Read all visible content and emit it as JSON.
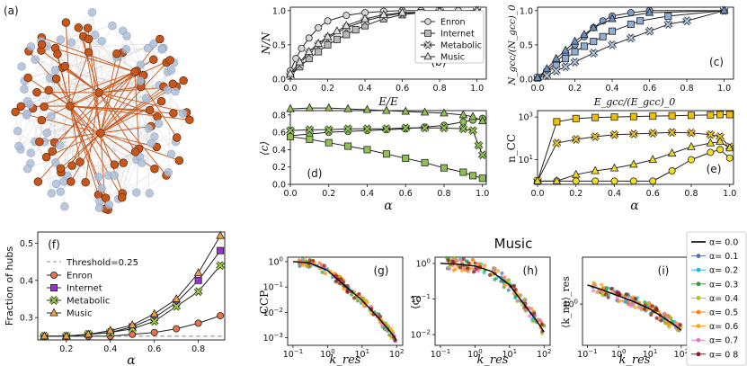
{
  "figure": {
    "music_title": "Music",
    "series_names": [
      "Enron",
      "Internet",
      "Metabolic",
      "Music"
    ],
    "series_colors": {
      "Enron": "#f0e020",
      "Internet": "#e8b000",
      "Metabolic": "#8dc63f",
      "Music": "#e8a030"
    },
    "network_colors": {
      "hub": "#c8561a",
      "node": "#aebfd8",
      "edge": "#bbbbbb",
      "hub_edge": "#c8561a"
    }
  },
  "chart_data": [
    {
      "panel": "(a)",
      "type": "network",
      "label": "(a)"
    },
    {
      "panel": "(b)",
      "type": "line",
      "label": "(b)",
      "xlabel": "E/E_0",
      "ylabel": "N/N_0",
      "xlim": [
        0,
        1.05
      ],
      "ylim": [
        0,
        1.05
      ],
      "xticks": [
        "0.0",
        "0.2",
        "0.4",
        "0.6",
        "0.8",
        "1.0"
      ],
      "yticks": [
        "0.0",
        "0.5",
        "1.0"
      ],
      "legend": "bottom-right",
      "series": [
        {
          "name": "Enron",
          "marker": "circle",
          "x": [
            0.0,
            0.03,
            0.06,
            0.1,
            0.15,
            0.2,
            0.3,
            0.4,
            0.5,
            0.6,
            0.7,
            0.8,
            0.9,
            1.0
          ],
          "y": [
            0.12,
            0.3,
            0.45,
            0.6,
            0.75,
            0.85,
            0.93,
            0.97,
            0.99,
            1.0,
            1.0,
            1.0,
            1.0,
            1.0
          ]
        },
        {
          "name": "Internet",
          "marker": "square",
          "x": [
            0.0,
            0.05,
            0.1,
            0.15,
            0.2,
            0.25,
            0.3,
            0.35,
            0.4,
            0.5,
            0.6,
            0.7,
            0.8,
            1.0
          ],
          "y": [
            0.05,
            0.18,
            0.3,
            0.4,
            0.5,
            0.58,
            0.65,
            0.72,
            0.78,
            0.88,
            0.94,
            0.97,
            0.99,
            1.0
          ]
        },
        {
          "name": "Metabolic",
          "marker": "x",
          "x": [
            0.0,
            0.05,
            0.1,
            0.15,
            0.2,
            0.3,
            0.4,
            0.5,
            0.6,
            0.8,
            1.0
          ],
          "y": [
            0.05,
            0.22,
            0.38,
            0.5,
            0.6,
            0.75,
            0.85,
            0.92,
            0.96,
            0.99,
            1.0
          ]
        },
        {
          "name": "Music",
          "marker": "triangle",
          "x": [
            0.0,
            0.05,
            0.1,
            0.15,
            0.2,
            0.25,
            0.3,
            0.4,
            0.5,
            0.6,
            0.8,
            1.0
          ],
          "y": [
            0.08,
            0.25,
            0.4,
            0.52,
            0.62,
            0.7,
            0.78,
            0.88,
            0.94,
            0.97,
            0.99,
            1.0
          ]
        }
      ]
    },
    {
      "panel": "(c)",
      "type": "line",
      "label": "(c)",
      "xlabel": "E_gcc/(E_gcc)_0",
      "ylabel": "N_gcc/(N_gcc)_0",
      "xlim": [
        0,
        1.05
      ],
      "ylim": [
        0,
        1.05
      ],
      "xticks": [
        "0.0",
        "0.2",
        "0.4",
        "0.6",
        "0.8",
        "1.0"
      ],
      "yticks": [
        "0.0",
        "0.5",
        "1.0"
      ],
      "series": [
        {
          "name": "Enron",
          "marker": "circle",
          "x": [
            0.0,
            0.05,
            0.1,
            0.15,
            0.2,
            0.25,
            0.3,
            0.35,
            0.4,
            0.5,
            0.6,
            1.0
          ],
          "y": [
            0.02,
            0.12,
            0.25,
            0.38,
            0.5,
            0.62,
            0.75,
            0.85,
            0.92,
            0.97,
            1.0,
            1.0
          ]
        },
        {
          "name": "Internet",
          "marker": "square",
          "x": [
            0.0,
            0.05,
            0.1,
            0.15,
            0.2,
            0.25,
            0.3,
            0.35,
            0.4,
            0.5,
            0.55,
            0.7,
            1.0
          ],
          "y": [
            0.02,
            0.1,
            0.2,
            0.3,
            0.4,
            0.48,
            0.55,
            0.62,
            0.7,
            0.8,
            0.85,
            0.92,
            1.0
          ]
        },
        {
          "name": "Metabolic",
          "marker": "x",
          "x": [
            0.0,
            0.05,
            0.1,
            0.15,
            0.2,
            0.3,
            0.4,
            0.5,
            0.6,
            0.7,
            0.8,
            1.0
          ],
          "y": [
            0.02,
            0.05,
            0.12,
            0.18,
            0.25,
            0.38,
            0.5,
            0.6,
            0.7,
            0.8,
            0.85,
            1.0
          ]
        },
        {
          "name": "Music",
          "marker": "triangle",
          "x": [
            0.0,
            0.05,
            0.1,
            0.15,
            0.2,
            0.25,
            0.3,
            0.4,
            0.6,
            1.0
          ],
          "y": [
            0.02,
            0.15,
            0.3,
            0.42,
            0.55,
            0.65,
            0.75,
            0.88,
            0.97,
            1.0
          ]
        }
      ]
    },
    {
      "panel": "(d)",
      "type": "line",
      "label": "(d)",
      "xlabel": "α",
      "ylabel": "⟨c⟩",
      "xlim": [
        0,
        1.02
      ],
      "ylim": [
        0,
        0.85
      ],
      "xticks": [
        "0.0",
        "0.2",
        "0.4",
        "0.6",
        "0.8",
        "1.0"
      ],
      "yticks": [
        "0.0",
        "0.2",
        "0.4",
        "0.6",
        "0.8"
      ],
      "series": [
        {
          "name": "Enron",
          "marker": "circle",
          "x": [
            0.0,
            0.1,
            0.2,
            0.3,
            0.4,
            0.5,
            0.6,
            0.7,
            0.8,
            0.9,
            0.95,
            1.0
          ],
          "y": [
            0.56,
            0.58,
            0.6,
            0.61,
            0.62,
            0.63,
            0.64,
            0.66,
            0.68,
            0.72,
            0.74,
            0.76
          ]
        },
        {
          "name": "Internet",
          "marker": "square",
          "x": [
            0.0,
            0.1,
            0.2,
            0.3,
            0.4,
            0.5,
            0.6,
            0.7,
            0.8,
            0.9,
            0.95,
            1.0
          ],
          "y": [
            0.55,
            0.52,
            0.48,
            0.44,
            0.4,
            0.35,
            0.3,
            0.25,
            0.19,
            0.14,
            0.1,
            0.07
          ]
        },
        {
          "name": "Metabolic",
          "marker": "x",
          "x": [
            0.0,
            0.1,
            0.2,
            0.3,
            0.4,
            0.5,
            0.6,
            0.7,
            0.8,
            0.9,
            0.95,
            0.98,
            1.0
          ],
          "y": [
            0.62,
            0.63,
            0.63,
            0.64,
            0.64,
            0.64,
            0.65,
            0.65,
            0.65,
            0.64,
            0.62,
            0.45,
            0.34
          ]
        },
        {
          "name": "Music",
          "marker": "triangle",
          "x": [
            0.0,
            0.1,
            0.2,
            0.3,
            0.4,
            0.5,
            0.6,
            0.7,
            0.8,
            0.9,
            0.95,
            1.0
          ],
          "y": [
            0.87,
            0.88,
            0.88,
            0.87,
            0.86,
            0.85,
            0.84,
            0.83,
            0.82,
            0.8,
            0.78,
            0.73
          ]
        }
      ]
    },
    {
      "panel": "(e)",
      "type": "line",
      "label": "(e)",
      "xlabel": "α",
      "ylabel": "n_CC",
      "yscale": "log",
      "xlim": [
        0,
        1.02
      ],
      "ylim": [
        0.7,
        2000
      ],
      "xticks": [
        "0.0",
        "0.2",
        "0.4",
        "0.6",
        "0.8",
        "1.0"
      ],
      "yticks": [
        "10^1",
        "10^3"
      ],
      "series": [
        {
          "name": "Enron",
          "marker": "circle",
          "x": [
            0.0,
            0.1,
            0.2,
            0.3,
            0.4,
            0.5,
            0.6,
            0.7,
            0.8,
            0.9,
            0.95,
            1.0
          ],
          "y": [
            1,
            1,
            1,
            1,
            1,
            1,
            1,
            3,
            10,
            22,
            30,
            12
          ]
        },
        {
          "name": "Internet",
          "marker": "square",
          "x": [
            0.0,
            0.1,
            0.2,
            0.3,
            0.4,
            0.5,
            0.6,
            0.7,
            0.8,
            0.9,
            0.95,
            1.0
          ],
          "y": [
            1,
            600,
            850,
            950,
            1000,
            1050,
            1100,
            1150,
            1200,
            1250,
            1300,
            1300
          ]
        },
        {
          "name": "Metabolic",
          "marker": "x",
          "x": [
            0.0,
            0.1,
            0.2,
            0.3,
            0.4,
            0.5,
            0.6,
            0.7,
            0.8,
            0.9,
            0.95,
            1.0
          ],
          "y": [
            1,
            60,
            90,
            120,
            150,
            160,
            175,
            190,
            180,
            150,
            120,
            40
          ]
        },
        {
          "name": "Music",
          "marker": "triangle",
          "x": [
            0.0,
            0.1,
            0.2,
            0.3,
            0.4,
            0.5,
            0.6,
            0.7,
            0.8,
            0.9,
            0.95,
            1.0
          ],
          "y": [
            1,
            1,
            2,
            3,
            4,
            6,
            10,
            20,
            40,
            60,
            70,
            35
          ]
        }
      ]
    },
    {
      "panel": "(f)",
      "type": "line",
      "label": "(f)",
      "xlabel": "α",
      "ylabel": "Fraction of hubs",
      "xlim": [
        0.07,
        0.92
      ],
      "ylim": [
        0.24,
        0.53
      ],
      "xticks": [
        "0.2",
        "0.4",
        "0.6",
        "0.8"
      ],
      "yticks": [
        "0.3",
        "0.4",
        "0.5"
      ],
      "threshold": {
        "label": "Threshold=0.25",
        "value": 0.25
      },
      "legend": "top-left",
      "series": [
        {
          "name": "Enron",
          "marker": "circle",
          "color": "#e8734a",
          "x": [
            0.1,
            0.2,
            0.3,
            0.4,
            0.5,
            0.6,
            0.7,
            0.8,
            0.9
          ],
          "y": [
            0.25,
            0.25,
            0.25,
            0.25,
            0.255,
            0.26,
            0.27,
            0.285,
            0.305
          ]
        },
        {
          "name": "Internet",
          "marker": "square",
          "color": "#9932cc",
          "x": [
            0.1,
            0.2,
            0.3,
            0.4,
            0.5,
            0.6,
            0.7,
            0.8,
            0.9
          ],
          "y": [
            0.25,
            0.25,
            0.255,
            0.26,
            0.275,
            0.3,
            0.34,
            0.4,
            0.48
          ]
        },
        {
          "name": "Metabolic",
          "marker": "x",
          "color": "#9acd32",
          "x": [
            0.1,
            0.2,
            0.3,
            0.4,
            0.5,
            0.6,
            0.7,
            0.8,
            0.9
          ],
          "y": [
            0.25,
            0.25,
            0.255,
            0.26,
            0.27,
            0.29,
            0.33,
            0.37,
            0.44
          ]
        },
        {
          "name": "Music",
          "marker": "triangle",
          "color": "#f0a040",
          "x": [
            0.1,
            0.2,
            0.3,
            0.4,
            0.5,
            0.6,
            0.7,
            0.8,
            0.9
          ],
          "y": [
            0.25,
            0.25,
            0.255,
            0.265,
            0.28,
            0.31,
            0.35,
            0.42,
            0.52
          ]
        }
      ]
    },
    {
      "panel": "(g)",
      "type": "scatter",
      "label": "(g)",
      "xlabel": "k_res",
      "ylabel": "CCP",
      "xscale": "log",
      "yscale": "log",
      "xlim": [
        0.07,
        150
      ],
      "ylim": [
        0.0005,
        1.5
      ],
      "xticks": [
        "10^-1",
        "10^0",
        "10^1",
        "10^2"
      ],
      "yticks": [
        "10^-3",
        "10^-2",
        "10^-1",
        "10^0"
      ],
      "trend": {
        "x": [
          0.1,
          0.3,
          1,
          3,
          10,
          30,
          60,
          100
        ],
        "y": [
          1.0,
          0.9,
          0.45,
          0.12,
          0.03,
          0.006,
          0.002,
          0.0008
        ]
      }
    },
    {
      "panel": "(h)",
      "type": "scatter",
      "label": "(h)",
      "xlabel": "k_res",
      "ylabel": "⟨c⟩",
      "xscale": "log",
      "yscale": "log",
      "xlim": [
        0.07,
        150
      ],
      "ylim": [
        0.005,
        1.5
      ],
      "xticks": [
        "10^-1",
        "10^0",
        "10^1",
        "10^2"
      ],
      "yticks": [
        "10^-2",
        "10^-1",
        "10^0"
      ],
      "trend": {
        "x": [
          0.1,
          0.3,
          1,
          3,
          10,
          30,
          60,
          100
        ],
        "y": [
          1.0,
          0.95,
          0.85,
          0.6,
          0.25,
          0.06,
          0.025,
          0.012
        ]
      }
    },
    {
      "panel": "(i)",
      "type": "scatter",
      "label": "(i)",
      "xlabel": "k_res",
      "ylabel": "⟨k_nn⟩_res",
      "xscale": "log",
      "yscale": "log",
      "xlim": [
        0.07,
        150
      ],
      "ylim": [
        0.05,
        30
      ],
      "xticks": [
        "10^-1",
        "10^0",
        "10^1",
        "10^2"
      ],
      "yticks": [
        "10^0"
      ],
      "legend": "right",
      "legend_entries": [
        {
          "label": "α= 0.0",
          "color": "#000000"
        },
        {
          "label": "α= 0.1",
          "color": "#4c72b0"
        },
        {
          "label": "α= 0.2",
          "color": "#17becf"
        },
        {
          "label": "α= 0.3",
          "color": "#2ca02c"
        },
        {
          "label": "α= 0.4",
          "color": "#bcbd22"
        },
        {
          "label": "α= 0.5",
          "color": "#ff7f0e"
        },
        {
          "label": "α= 0.6",
          "color": "#ff9f1a"
        },
        {
          "label": "α= 0.7",
          "color": "#e377c2"
        },
        {
          "label": "α= 0 8",
          "color": "#8b1a1a"
        }
      ],
      "trend": {
        "x": [
          0.1,
          0.3,
          1,
          3,
          10,
          30,
          60,
          100
        ],
        "y": [
          4.0,
          2.8,
          1.8,
          1.2,
          0.7,
          0.35,
          0.22,
          0.15
        ]
      }
    }
  ]
}
